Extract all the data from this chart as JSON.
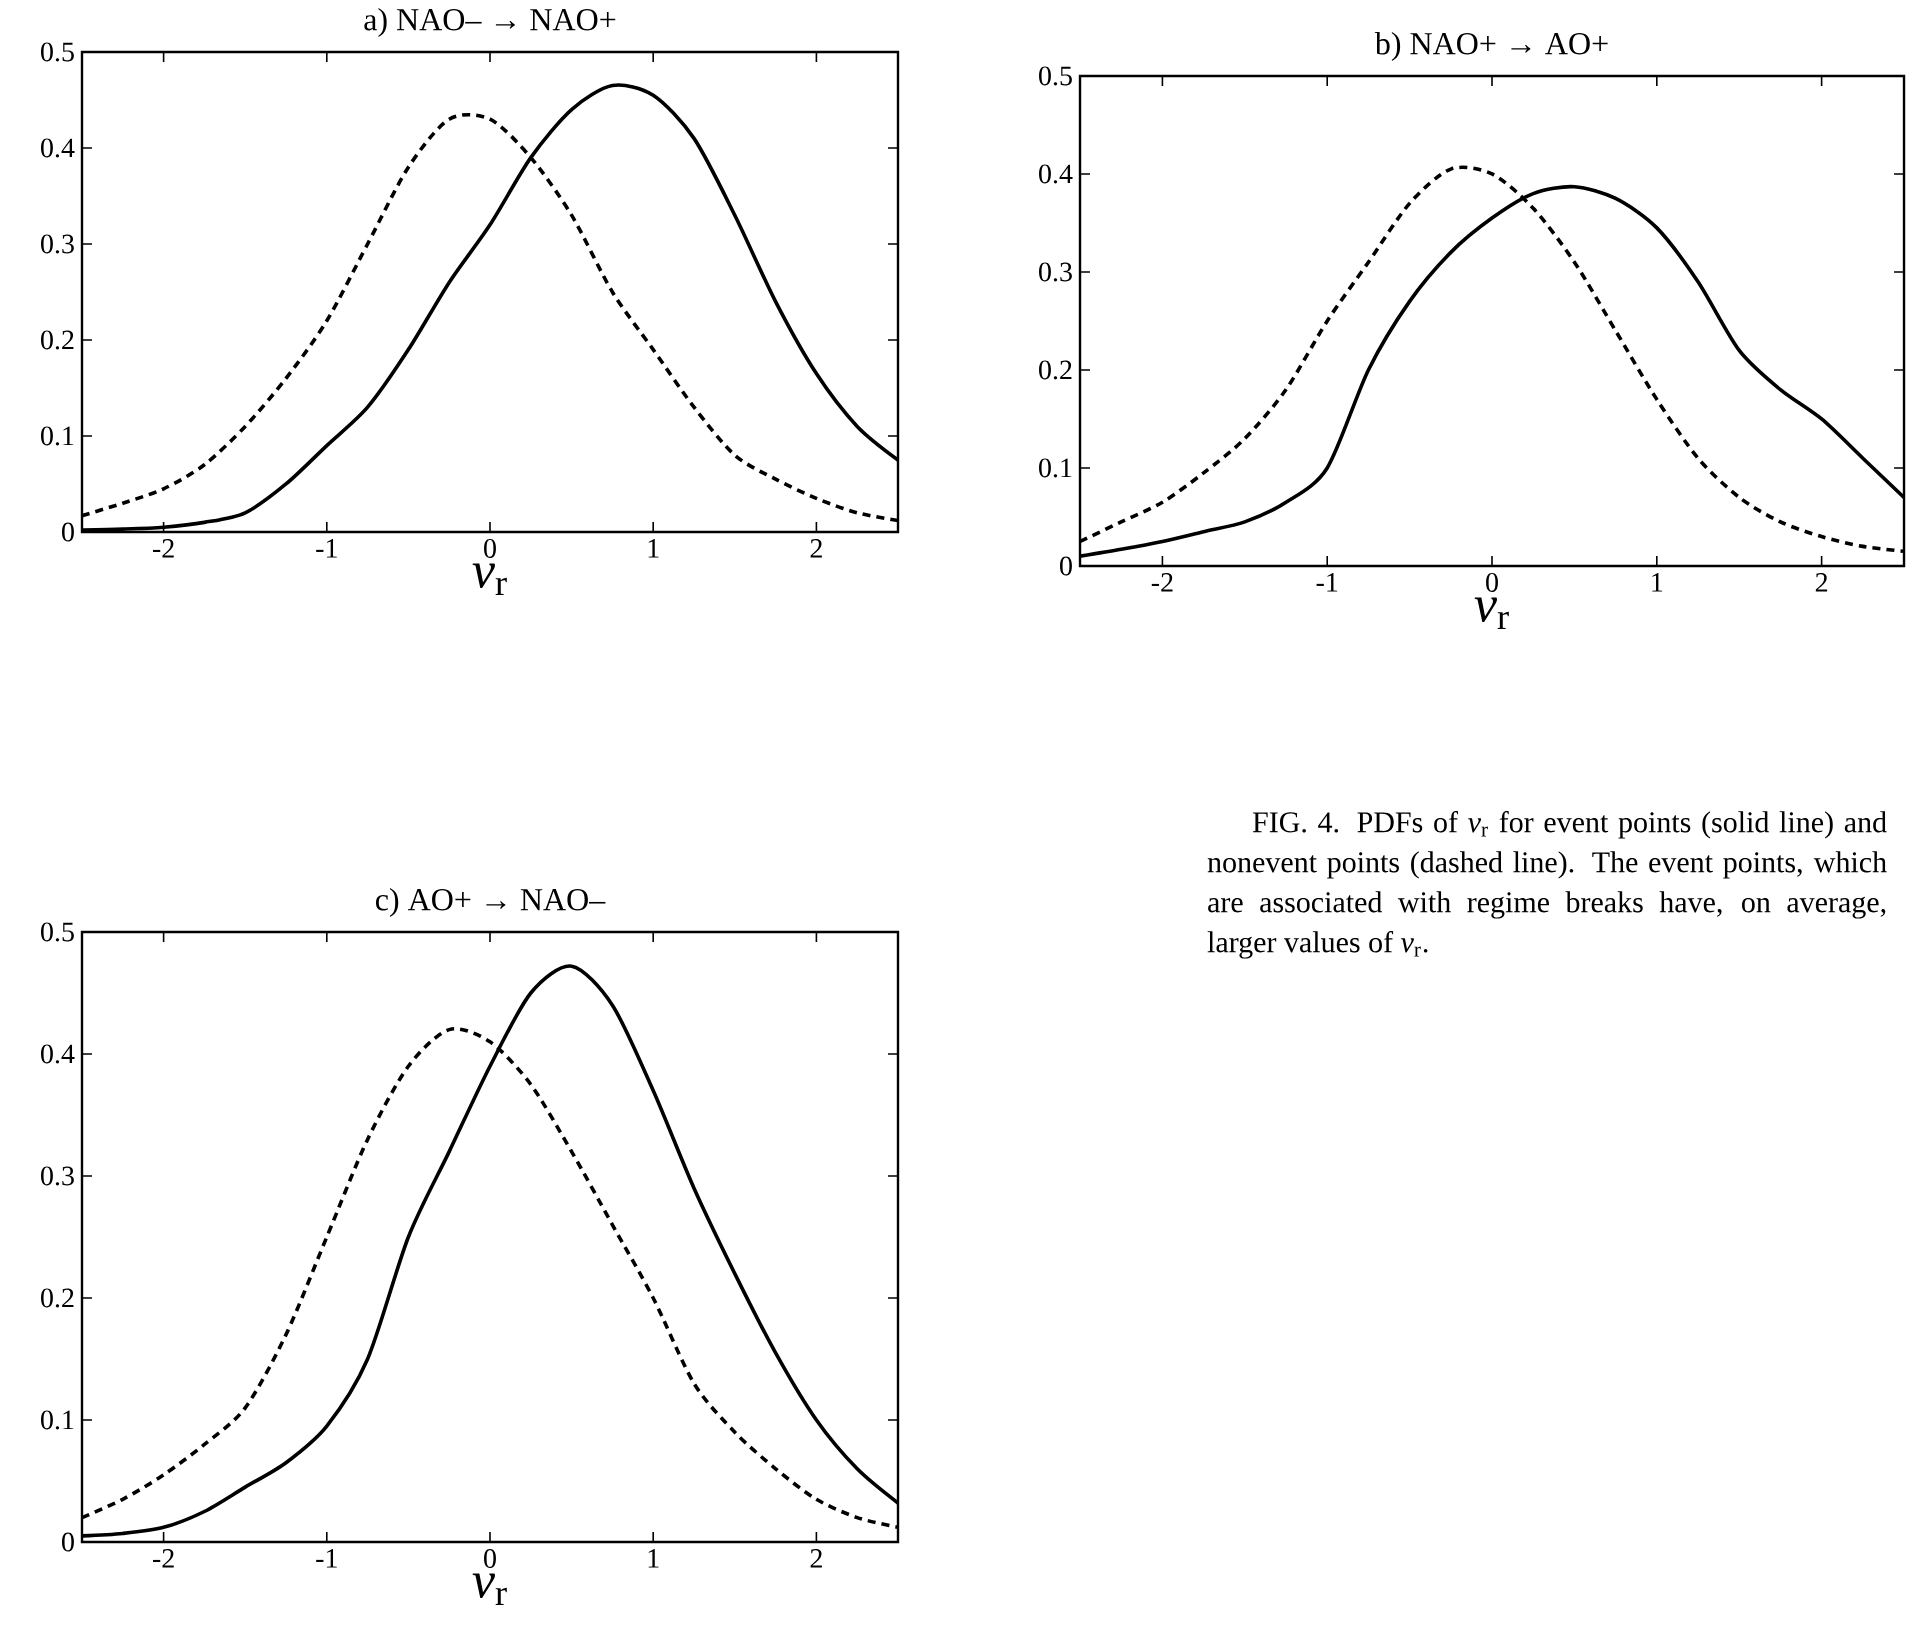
{
  "chart_data": [
    {
      "type": "line",
      "title": "a)  NAO– → NAO+",
      "xlabel": "*v*$_{r}$",
      "x": [
        -2.5,
        -2.25,
        -2,
        -1.75,
        -1.5,
        -1.25,
        -1,
        -0.75,
        -0.5,
        -0.25,
        0,
        0.25,
        0.5,
        0.75,
        1,
        1.25,
        1.5,
        1.75,
        2,
        2.25,
        2.5
      ],
      "series": [
        {
          "color": "#000000",
          "line_style": "solid",
          "values": [
            0.002,
            0.003,
            0.005,
            0.01,
            0.02,
            0.05,
            0.09,
            0.13,
            0.19,
            0.26,
            0.32,
            0.39,
            0.44,
            0.465,
            0.455,
            0.41,
            0.33,
            0.24,
            0.165,
            0.11,
            0.075
          ]
        },
        {
          "color": "#000000",
          "line_style": "dashed",
          "values": [
            0.017,
            0.03,
            0.045,
            0.07,
            0.11,
            0.16,
            0.22,
            0.3,
            0.38,
            0.43,
            0.43,
            0.39,
            0.33,
            0.25,
            0.19,
            0.13,
            0.08,
            0.055,
            0.035,
            0.02,
            0.012
          ]
        }
      ],
      "xlim": [
        -2.5,
        2.5
      ],
      "ylim": [
        0,
        0.5
      ],
      "xticks": [
        -2,
        -1,
        0,
        1,
        2
      ],
      "yticks": [
        0,
        0.1,
        0.2,
        0.3,
        0.4,
        0.5
      ],
      "grid": false
    },
    {
      "type": "line",
      "title": "b)  NAO+ → AO+",
      "xlabel": "*v*$_{r}$",
      "x": [
        -2.5,
        -2.25,
        -2,
        -1.75,
        -1.5,
        -1.25,
        -1,
        -0.75,
        -0.5,
        -0.25,
        0,
        0.25,
        0.5,
        0.75,
        1,
        1.25,
        1.5,
        1.75,
        2,
        2.25,
        2.5
      ],
      "series": [
        {
          "color": "#000000",
          "line_style": "solid",
          "values": [
            0.01,
            0.017,
            0.025,
            0.035,
            0.045,
            0.065,
            0.1,
            0.2,
            0.27,
            0.32,
            0.355,
            0.38,
            0.387,
            0.375,
            0.345,
            0.29,
            0.22,
            0.18,
            0.15,
            0.11,
            0.07
          ]
        },
        {
          "color": "#000000",
          "line_style": "dashed",
          "values": [
            0.025,
            0.045,
            0.065,
            0.095,
            0.13,
            0.18,
            0.25,
            0.31,
            0.37,
            0.405,
            0.4,
            0.365,
            0.31,
            0.24,
            0.17,
            0.11,
            0.07,
            0.045,
            0.03,
            0.02,
            0.015
          ]
        }
      ],
      "xlim": [
        -2.5,
        2.5
      ],
      "ylim": [
        0,
        0.5
      ],
      "xticks": [
        -2,
        -1,
        0,
        1,
        2
      ],
      "yticks": [
        0,
        0.1,
        0.2,
        0.3,
        0.4,
        0.5
      ],
      "grid": false
    },
    {
      "type": "line",
      "title": "c)  AO+ → NAO–",
      "xlabel": "*v*$_{r}$",
      "x": [
        -2.5,
        -2.25,
        -2,
        -1.75,
        -1.5,
        -1.25,
        -1,
        -0.75,
        -0.5,
        -0.25,
        0,
        0.25,
        0.5,
        0.75,
        1,
        1.25,
        1.5,
        1.75,
        2,
        2.25,
        2.5
      ],
      "series": [
        {
          "color": "#000000",
          "line_style": "solid",
          "values": [
            0.005,
            0.007,
            0.012,
            0.025,
            0.045,
            0.065,
            0.095,
            0.15,
            0.25,
            0.32,
            0.39,
            0.45,
            0.472,
            0.44,
            0.37,
            0.29,
            0.22,
            0.155,
            0.1,
            0.06,
            0.032
          ]
        },
        {
          "color": "#000000",
          "line_style": "dashed",
          "values": [
            0.02,
            0.035,
            0.055,
            0.08,
            0.11,
            0.17,
            0.25,
            0.33,
            0.39,
            0.42,
            0.41,
            0.375,
            0.32,
            0.26,
            0.2,
            0.13,
            0.09,
            0.06,
            0.035,
            0.02,
            0.012
          ]
        }
      ],
      "xlim": [
        -2.5,
        2.5
      ],
      "ylim": [
        0,
        0.5
      ],
      "xticks": [
        -2,
        -1,
        0,
        1,
        2
      ],
      "yticks": [
        0,
        0.1,
        0.2,
        0.3,
        0.4,
        0.5
      ],
      "grid": false
    },
    {
      "type": "other",
      "annotations": [
        "FIG. 4. PDFs of *v*$_{r}$ for event points (solid line) and nonevent points (dashed line). The event points, which are associated with regime breaks have, on average, larger values of *v*$_{r}$."
      ]
    }
  ]
}
